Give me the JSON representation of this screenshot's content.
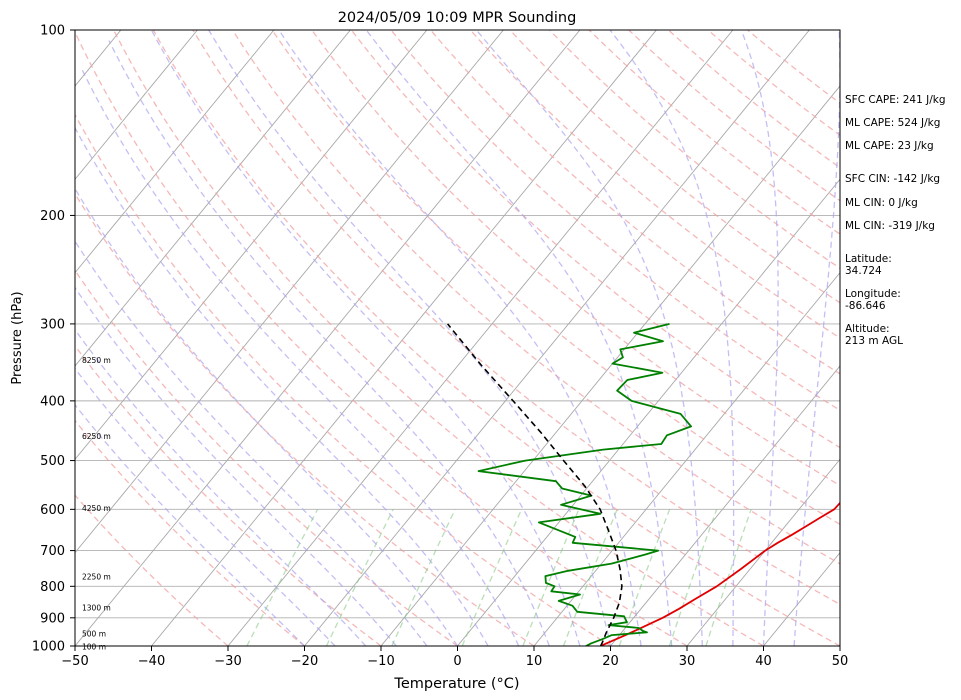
{
  "chart_data": {
    "type": "line",
    "subtype": "skew-T log-P sounding",
    "title": "2024/05/09 10:09 MPR Sounding",
    "xlabel": "Temperature (°C)",
    "ylabel": "Pressure (hPa)",
    "xlim": [
      -50,
      50
    ],
    "ylim": [
      1000,
      100
    ],
    "y_scale": "log",
    "x_ticks": [
      "−50",
      "−40",
      "−30",
      "−20",
      "−10",
      "0",
      "10",
      "20",
      "30",
      "40",
      "50"
    ],
    "y_ticks": [
      "100",
      "200",
      "300",
      "400",
      "500",
      "600",
      "700",
      "800",
      "900",
      "1000"
    ],
    "grid": true,
    "height_labels": [
      "8250 m",
      "6250 m",
      "4250 m",
      "2250 m",
      "1300 m",
      "500 m",
      "100 m"
    ],
    "series": [
      {
        "role": "temperature",
        "color": "#e00000",
        "points": [
          [
            1000,
            18.7
          ],
          [
            990,
            19.2
          ],
          [
            975,
            20.0
          ],
          [
            960,
            20.8
          ],
          [
            930,
            22.3
          ],
          [
            900,
            23.8
          ],
          [
            870,
            25.0
          ],
          [
            840,
            26.0
          ],
          [
            800,
            27.5
          ],
          [
            750,
            28.8
          ],
          [
            700,
            30.0
          ],
          [
            680,
            30.8
          ],
          [
            660,
            31.8
          ],
          [
            640,
            32.7
          ],
          [
            620,
            33.6
          ],
          [
            600,
            34.6
          ],
          [
            560,
            34.8
          ],
          [
            540,
            35.6
          ],
          [
            525,
            35.6
          ],
          [
            510,
            32.5
          ],
          [
            500,
            33.9
          ],
          [
            460,
            32.6
          ],
          [
            430,
            31.3
          ],
          [
            410,
            29.3
          ],
          [
            395,
            28.3
          ],
          [
            375,
            26.5
          ],
          [
            365,
            27.6
          ],
          [
            355,
            28.6
          ],
          [
            340,
            29.6
          ],
          [
            325,
            31.5
          ],
          [
            315,
            30.7
          ],
          [
            307,
            31.5
          ],
          [
            300,
            32.4
          ]
        ]
      },
      {
        "role": "dewpoint",
        "color": "#008000",
        "points": [
          [
            1000,
            16.8
          ],
          [
            990,
            17.2
          ],
          [
            975,
            18.2
          ],
          [
            960,
            19.0
          ],
          [
            950,
            23.3
          ],
          [
            945,
            22.6
          ],
          [
            935,
            21.8
          ],
          [
            925,
            17.5
          ],
          [
            915,
            19.6
          ],
          [
            895,
            18.6
          ],
          [
            880,
            12.0
          ],
          [
            860,
            10.7
          ],
          [
            845,
            8.4
          ],
          [
            825,
            10.5
          ],
          [
            815,
            6.4
          ],
          [
            800,
            6.3
          ],
          [
            790,
            4.8
          ],
          [
            770,
            4.0
          ],
          [
            755,
            6.4
          ],
          [
            735,
            11.3
          ],
          [
            710,
            14.8
          ],
          [
            700,
            16.0
          ],
          [
            680,
            4.0
          ],
          [
            665,
            3.7
          ],
          [
            630,
            -2.6
          ],
          [
            610,
            4.5
          ],
          [
            590,
            -1.6
          ],
          [
            570,
            1.4
          ],
          [
            555,
            -3.2
          ],
          [
            540,
            -4.8
          ],
          [
            520,
            -16.0
          ],
          [
            500,
            -11.0
          ],
          [
            480,
            -2.0
          ],
          [
            470,
            5.0
          ],
          [
            455,
            4.8
          ],
          [
            440,
            7.0
          ],
          [
            420,
            4.3
          ],
          [
            400,
            -3.5
          ],
          [
            385,
            -6.5
          ],
          [
            370,
            -6.3
          ],
          [
            360,
            -2.5
          ],
          [
            348,
            -10.0
          ],
          [
            340,
            -9.3
          ],
          [
            330,
            -10.5
          ],
          [
            320,
            -5.8
          ],
          [
            310,
            -10.5
          ],
          [
            300,
            -6.8
          ]
        ]
      },
      {
        "role": "parcel",
        "color": "#000000",
        "style": "dashed",
        "points": [
          [
            1000,
            18.7
          ],
          [
            990,
            18.6
          ],
          [
            950,
            18.0
          ],
          [
            900,
            17.4
          ],
          [
            850,
            16.5
          ],
          [
            800,
            15.1
          ],
          [
            750,
            13.0
          ],
          [
            700,
            10.5
          ],
          [
            650,
            7.4
          ],
          [
            600,
            4.0
          ],
          [
            550,
            -0.5
          ],
          [
            500,
            -6.0
          ],
          [
            450,
            -12.0
          ],
          [
            400,
            -19.0
          ],
          [
            350,
            -27.0
          ],
          [
            300,
            -35.8
          ]
        ]
      }
    ]
  },
  "info_panel": {
    "sfc_cape": "SFC CAPE: 241 J/kg",
    "ml_cape_1": "ML CAPE: 524 J/kg",
    "ml_cape_2": "ML CAPE: 23 J/kg",
    "sfc_cin": "SFC CIN: -142 J/kg",
    "ml_cin_1": "ML CIN: 0 J/kg",
    "ml_cin_2": "ML CIN: -319 J/kg",
    "latitude_label": "Latitude:",
    "latitude_value": "34.724",
    "longitude_label": "Longitude:",
    "longitude_value": "-86.646",
    "altitude_label": "Altitude:",
    "altitude_value": "213 m AGL"
  }
}
